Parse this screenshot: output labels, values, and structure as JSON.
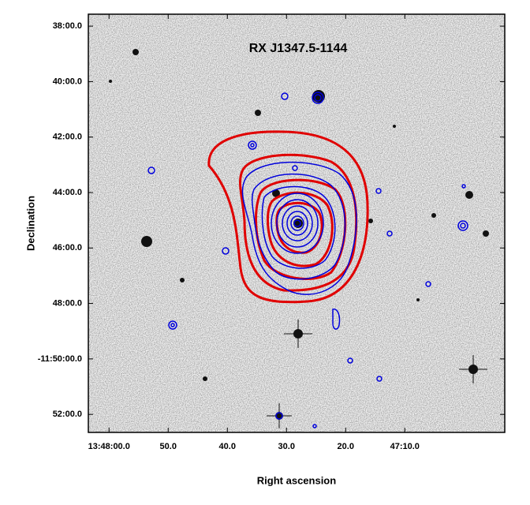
{
  "chart_data": {
    "type": "image",
    "title": "RX J1347.5-1144",
    "xlabel": "Right ascension",
    "ylabel": "Declination",
    "xlim": [
      63.5,
      -6.9
    ],
    "xticks": [
      {
        "value": 60,
        "label": "13:48:00.0"
      },
      {
        "value": 50,
        "label": "50.0"
      },
      {
        "value": 40,
        "label": "40.0"
      },
      {
        "value": 30,
        "label": "30.0"
      },
      {
        "value": 20,
        "label": "20.0"
      },
      {
        "value": 10,
        "label": "47:10.0"
      }
    ],
    "ylim": [
      -712.65,
      -697.57
    ],
    "yticks": [
      {
        "value": -698,
        "label": "38:00.0"
      },
      {
        "value": -700,
        "label": "40:00.0"
      },
      {
        "value": -702,
        "label": "42:00.0"
      },
      {
        "value": -704,
        "label": "44:00.0"
      },
      {
        "value": -706,
        "label": "46:00.0"
      },
      {
        "value": -708,
        "label": "48:00.0"
      },
      {
        "value": -710,
        "label": "-11:50:00.0"
      },
      {
        "value": -712,
        "label": "52:00.0"
      }
    ]
  }
}
